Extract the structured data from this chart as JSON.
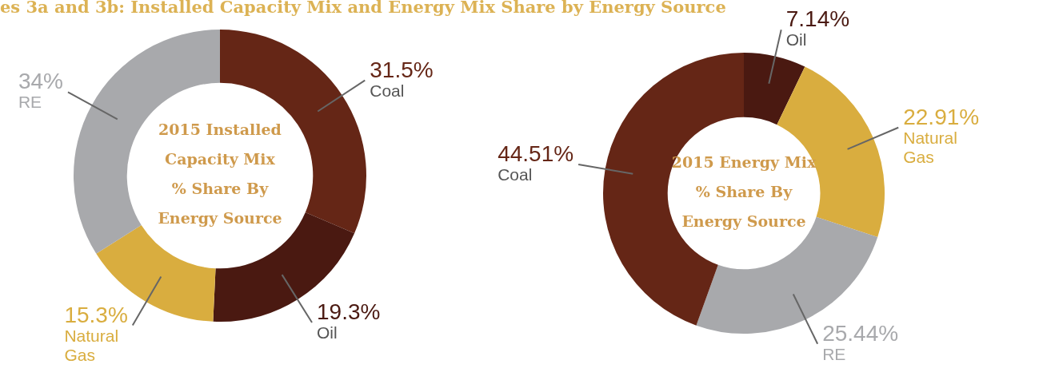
{
  "chart_data": [
    {
      "type": "donut",
      "title": "es 3a and 3b:  Installed Capacity Mix and Energy Mix Share by Energy Source",
      "subtitle": "2015 Installed\nCapacity Mix\n% Share By\nEnergy Source",
      "categories": [
        "Coal",
        "Oil",
        "Natural\nGas",
        "RE"
      ],
      "values": [
        31.5,
        19.3,
        15.3,
        34
      ],
      "colors": [
        "#652616",
        "#4a1911",
        "#d9ad3f",
        "#a8a9ac"
      ],
      "value_labels": [
        "31.5%",
        "19.3%",
        "15.3%",
        "34%"
      ]
    },
    {
      "type": "donut",
      "subtitle": "2015 Energy Mix\n% Share By\nEnergy Source",
      "categories": [
        "Oil",
        "Natural\nGas",
        "RE",
        "Coal"
      ],
      "values": [
        7.14,
        22.91,
        25.44,
        44.51
      ],
      "colors": [
        "#4a1911",
        "#d9ad3f",
        "#a8a9ac",
        "#652616"
      ],
      "value_labels": [
        "7.14%",
        "22.91%",
        "25.44%",
        "44.51%"
      ]
    }
  ]
}
